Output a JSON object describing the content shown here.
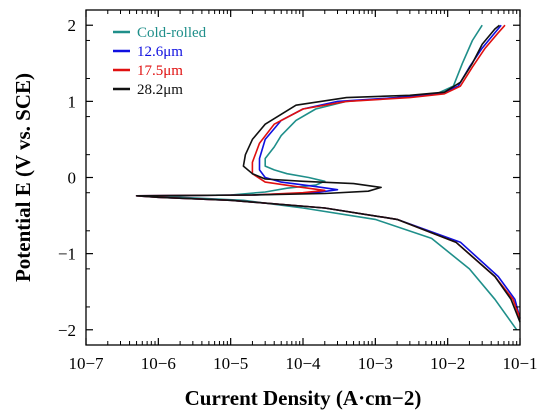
{
  "chart_data": {
    "type": "line",
    "title": "",
    "xlabel": "Current Density (A·cm−2)",
    "ylabel": "Potential E (V vs. SCE)",
    "x_scale": "log",
    "xlim": [
      1e-07,
      0.1
    ],
    "ylim": [
      -2.2,
      2.2
    ],
    "x_ticks": [
      {
        "value": 1e-07,
        "label": "10−7"
      },
      {
        "value": 1e-06,
        "label": "10−6"
      },
      {
        "value": 1e-05,
        "label": "10−5"
      },
      {
        "value": 0.0001,
        "label": "10−4"
      },
      {
        "value": 0.001,
        "label": "10−3"
      },
      {
        "value": 0.01,
        "label": "10−2"
      },
      {
        "value": 0.1,
        "label": "10−1"
      }
    ],
    "y_ticks": [
      {
        "value": -2,
        "label": "−2"
      },
      {
        "value": -1,
        "label": "−1"
      },
      {
        "value": 0,
        "label": "0"
      },
      {
        "value": 1,
        "label": "1"
      },
      {
        "value": 2,
        "label": "2"
      }
    ],
    "grid": false,
    "legend_position": "top-left",
    "series": [
      {
        "name": "Cold-rolled",
        "color": "#1f8f8a",
        "points": [
          [
            0.09,
            -2.0
          ],
          [
            0.045,
            -1.6
          ],
          [
            0.02,
            -1.2
          ],
          [
            0.006,
            -0.8
          ],
          [
            0.001,
            -0.55
          ],
          [
            0.0001,
            -0.4
          ],
          [
            1.5e-05,
            -0.3
          ],
          [
            2e-06,
            -0.26
          ],
          [
            1e-06,
            -0.24
          ],
          [
            1e-05,
            -0.23
          ],
          [
            3e-05,
            -0.19
          ],
          [
            6e-05,
            -0.14
          ],
          [
            0.00015,
            -0.1
          ],
          [
            0.0002,
            -0.05
          ],
          [
            0.00012,
            0.0
          ],
          [
            6e-05,
            0.05
          ],
          [
            4e-05,
            0.1
          ],
          [
            3e-05,
            0.15
          ],
          [
            3e-05,
            0.25
          ],
          [
            4e-05,
            0.4
          ],
          [
            5e-05,
            0.55
          ],
          [
            8e-05,
            0.75
          ],
          [
            0.00015,
            0.9
          ],
          [
            0.0004,
            1.0
          ],
          [
            0.002,
            1.05
          ],
          [
            0.007,
            1.1
          ],
          [
            0.012,
            1.2
          ],
          [
            0.016,
            1.5
          ],
          [
            0.022,
            1.8
          ],
          [
            0.03,
            2.0
          ]
        ]
      },
      {
        "name": "12.6μm",
        "color": "#1010e0",
        "points": [
          [
            0.1,
            -1.85
          ],
          [
            0.085,
            -1.6
          ],
          [
            0.05,
            -1.3
          ],
          [
            0.015,
            -0.85
          ],
          [
            0.002,
            -0.55
          ],
          [
            0.0002,
            -0.4
          ],
          [
            1e-05,
            -0.3
          ],
          [
            1e-06,
            -0.26
          ],
          [
            5e-07,
            -0.24
          ],
          [
            2e-05,
            -0.23
          ],
          [
            0.00015,
            -0.2
          ],
          [
            0.0003,
            -0.16
          ],
          [
            0.00015,
            -0.12
          ],
          [
            5e-05,
            -0.06
          ],
          [
            3e-05,
            0.0
          ],
          [
            2.5e-05,
            0.1
          ],
          [
            2.5e-05,
            0.25
          ],
          [
            3e-05,
            0.5
          ],
          [
            5e-05,
            0.75
          ],
          [
            0.0001,
            0.9
          ],
          [
            0.0003,
            1.0
          ],
          [
            0.002,
            1.05
          ],
          [
            0.008,
            1.1
          ],
          [
            0.014,
            1.2
          ],
          [
            0.02,
            1.45
          ],
          [
            0.03,
            1.7
          ],
          [
            0.045,
            1.9
          ],
          [
            0.055,
            2.0
          ]
        ]
      },
      {
        "name": "17.5μm",
        "color": "#e01010",
        "points": [
          [
            0.1,
            -1.85
          ],
          [
            0.08,
            -1.6
          ],
          [
            0.045,
            -1.3
          ],
          [
            0.013,
            -0.85
          ],
          [
            0.002,
            -0.55
          ],
          [
            0.0002,
            -0.4
          ],
          [
            1e-05,
            -0.3
          ],
          [
            1e-06,
            -0.26
          ],
          [
            5e-07,
            -0.24
          ],
          [
            2e-05,
            -0.23
          ],
          [
            0.0001,
            -0.2
          ],
          [
            0.0002,
            -0.17
          ],
          [
            8e-05,
            -0.12
          ],
          [
            3e-05,
            -0.06
          ],
          [
            2e-05,
            0.05
          ],
          [
            2e-05,
            0.2
          ],
          [
            2.5e-05,
            0.45
          ],
          [
            4e-05,
            0.7
          ],
          [
            0.0001,
            0.9
          ],
          [
            0.0004,
            1.0
          ],
          [
            0.003,
            1.05
          ],
          [
            0.009,
            1.1
          ],
          [
            0.015,
            1.2
          ],
          [
            0.022,
            1.45
          ],
          [
            0.033,
            1.7
          ],
          [
            0.05,
            1.9
          ],
          [
            0.062,
            2.0
          ]
        ]
      },
      {
        "name": "28.2μm",
        "color": "#111111",
        "points": [
          [
            0.1,
            -1.9
          ],
          [
            0.075,
            -1.6
          ],
          [
            0.045,
            -1.3
          ],
          [
            0.013,
            -0.85
          ],
          [
            0.002,
            -0.55
          ],
          [
            0.0002,
            -0.4
          ],
          [
            1e-05,
            -0.3
          ],
          [
            1e-06,
            -0.26
          ],
          [
            5e-07,
            -0.24
          ],
          [
            2e-05,
            -0.23
          ],
          [
            0.0002,
            -0.21
          ],
          [
            0.0008,
            -0.18
          ],
          [
            0.0012,
            -0.13
          ],
          [
            0.0005,
            -0.08
          ],
          [
            0.0001,
            -0.05
          ],
          [
            3e-05,
            -0.02
          ],
          [
            2e-05,
            0.05
          ],
          [
            1.5e-05,
            0.15
          ],
          [
            1.6e-05,
            0.3
          ],
          [
            2e-05,
            0.5
          ],
          [
            3e-05,
            0.7
          ],
          [
            8e-05,
            0.95
          ],
          [
            0.0004,
            1.05
          ],
          [
            0.003,
            1.08
          ],
          [
            0.009,
            1.12
          ],
          [
            0.015,
            1.25
          ],
          [
            0.022,
            1.5
          ],
          [
            0.03,
            1.75
          ],
          [
            0.045,
            1.95
          ],
          [
            0.052,
            2.0
          ]
        ]
      }
    ]
  }
}
